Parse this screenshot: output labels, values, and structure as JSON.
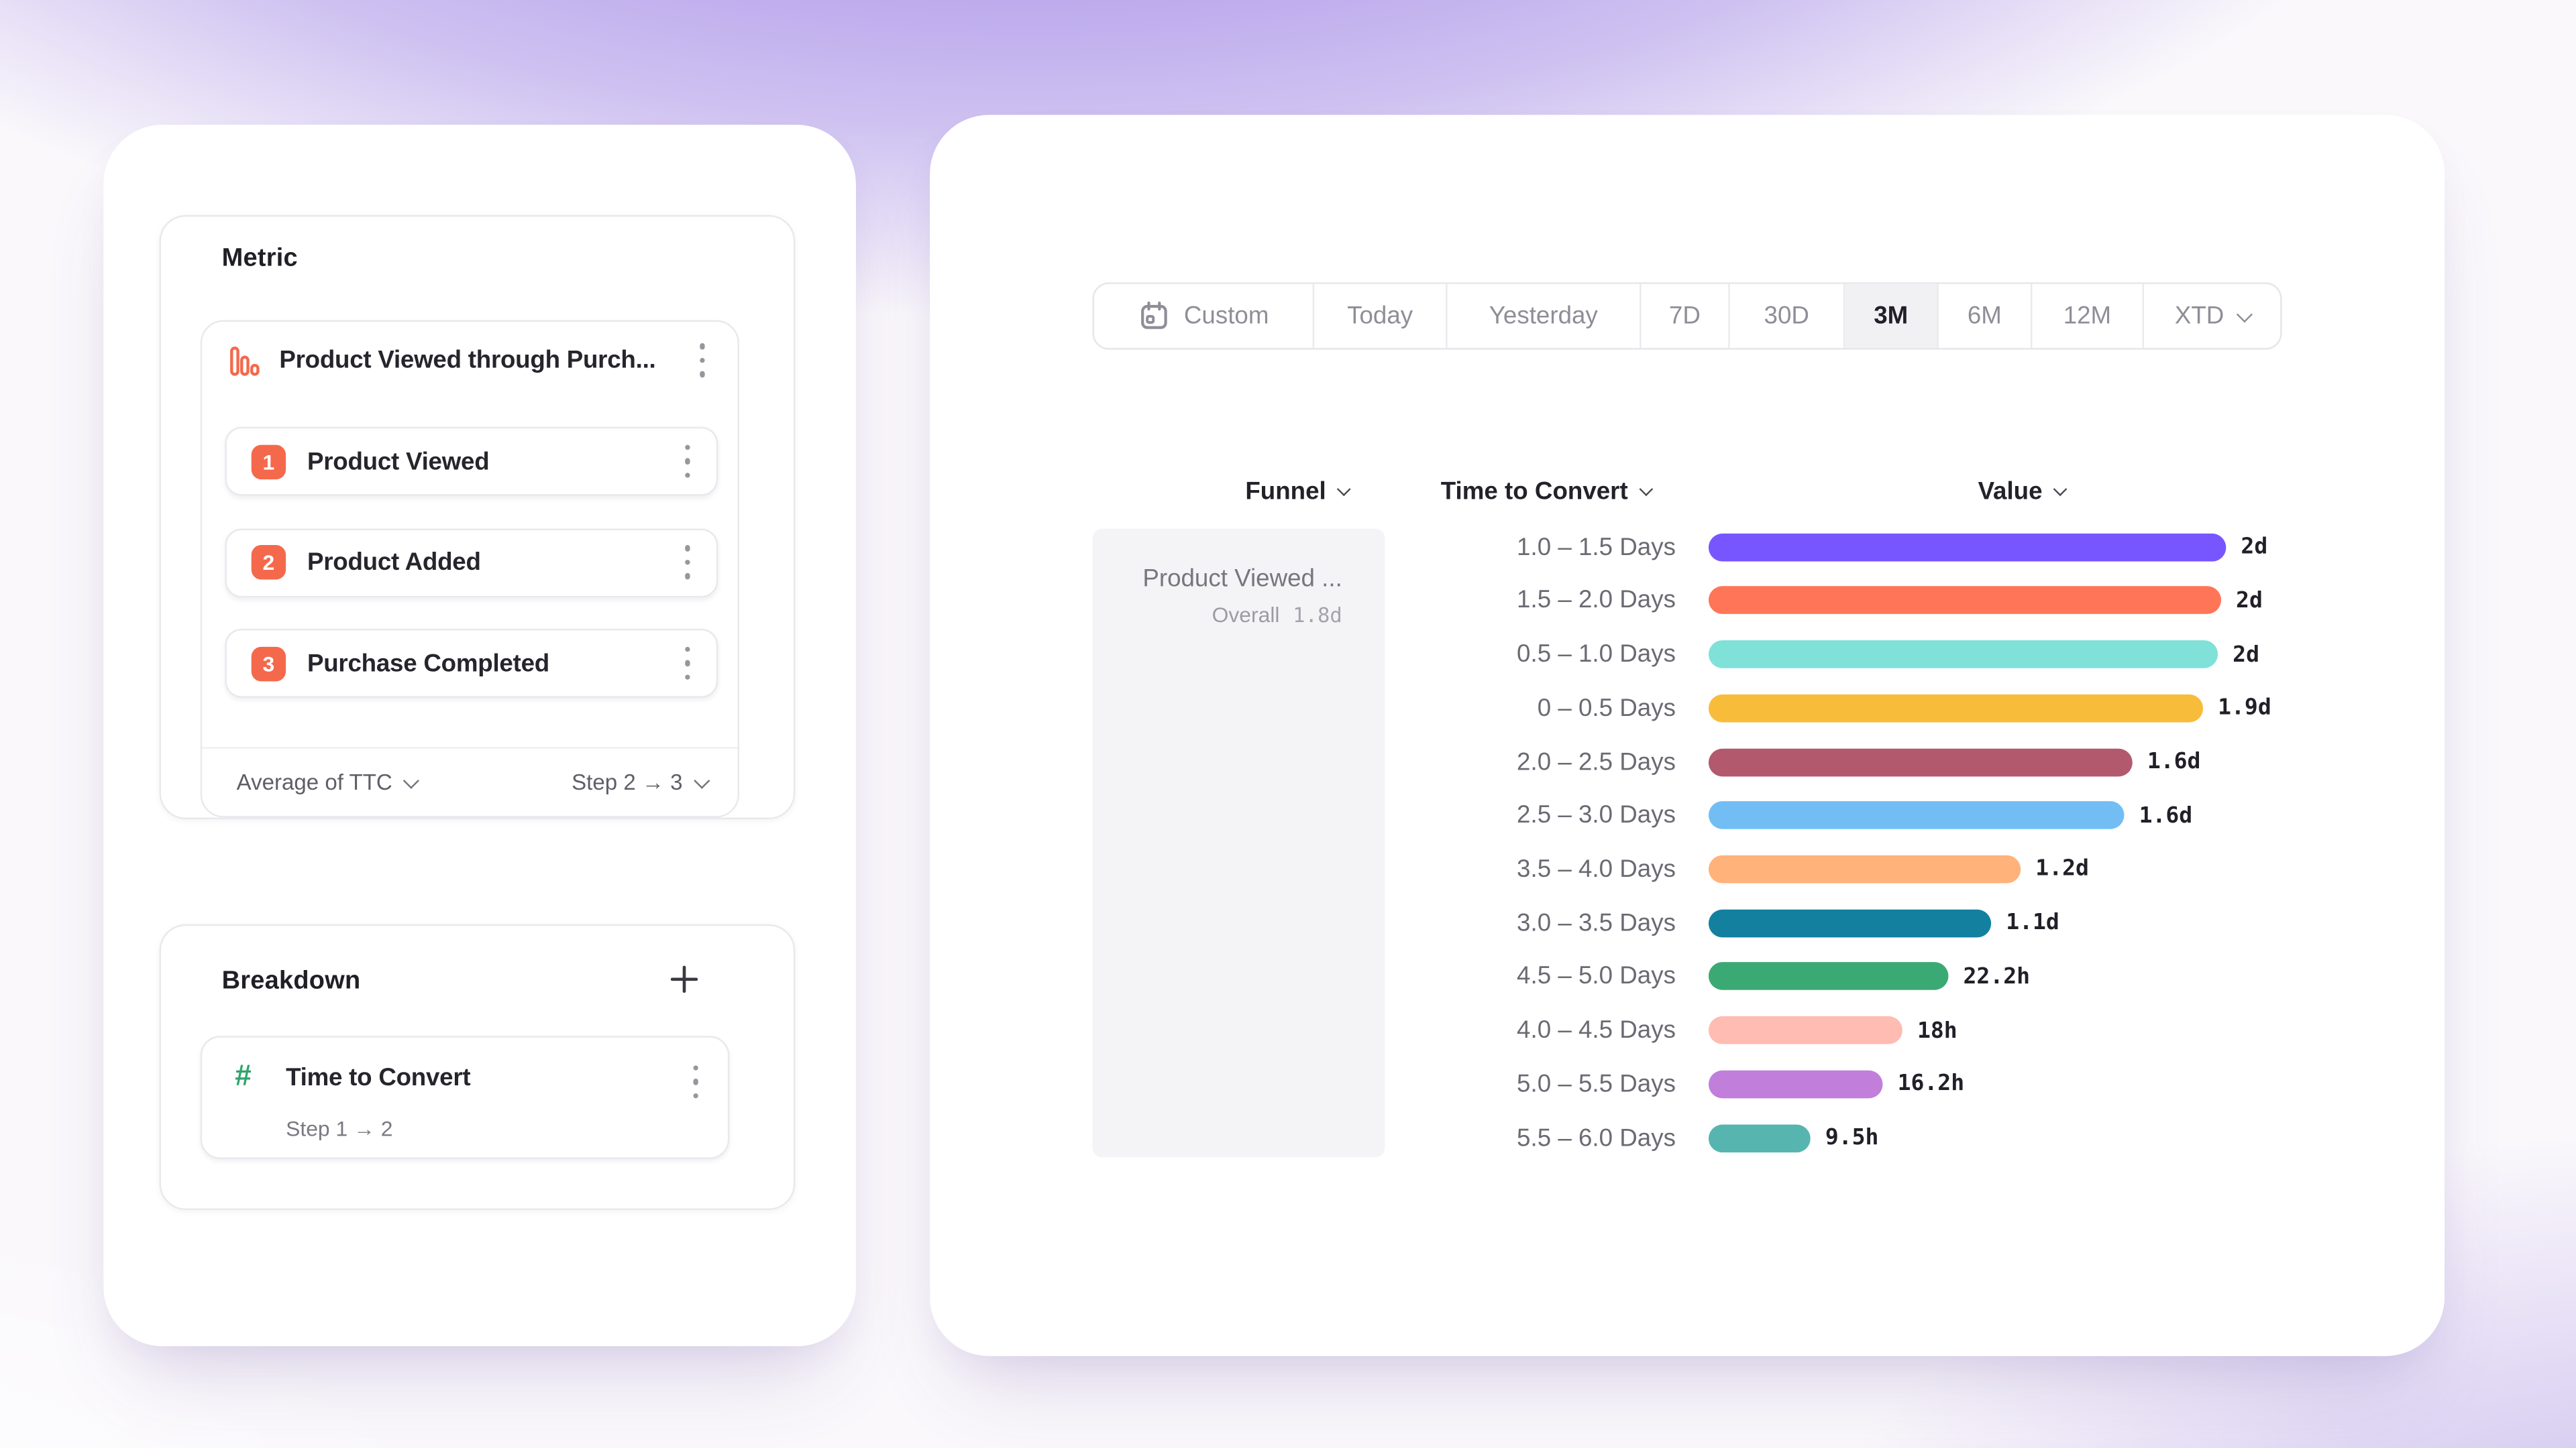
{
  "left_panel": {
    "metric": {
      "title": "Metric",
      "funnel": {
        "name": "Product Viewed through Purch...",
        "steps": [
          {
            "num": "1",
            "label": "Product Viewed"
          },
          {
            "num": "2",
            "label": "Product Added"
          },
          {
            "num": "3",
            "label": "Purchase Completed"
          }
        ],
        "aggregation_label": "Average of TTC",
        "step_range_label": "Step 2 → 3"
      }
    },
    "breakdown": {
      "title": "Breakdown",
      "item": {
        "label": "Time to Convert",
        "sublabel": "Step 1 → 2"
      }
    }
  },
  "right_panel": {
    "date_picker": {
      "segments": [
        {
          "label": "Custom",
          "icon": "calendar-icon",
          "selected": false
        },
        {
          "label": "Today",
          "selected": false
        },
        {
          "label": "Yesterday",
          "selected": false
        },
        {
          "label": "7D",
          "selected": false
        },
        {
          "label": "30D",
          "selected": false
        },
        {
          "label": "3M",
          "selected": true
        },
        {
          "label": "6M",
          "selected": false
        },
        {
          "label": "12M",
          "selected": false
        },
        {
          "label": "XTD",
          "chevron": true,
          "selected": false
        }
      ],
      "selected": "3M"
    },
    "table": {
      "columns": [
        "Funnel",
        "Time to Convert",
        "Value"
      ],
      "funnel_cell": {
        "name": "Product Viewed ...",
        "overall_label": "Overall",
        "overall_value": "1.8d"
      }
    }
  },
  "chart_data": {
    "type": "bar",
    "orientation": "horizontal",
    "title": "",
    "xlabel": "Value",
    "ylabel": "Time to Convert",
    "legend": false,
    "grid": false,
    "categories": [
      "1.0 – 1.5 Days",
      "1.5 – 2.0 Days",
      "0.5 – 1.0 Days",
      "0 – 0.5 Days",
      "2.0 – 2.5 Days",
      "2.5 – 3.0 Days",
      "3.5 – 4.0 Days",
      "3.0 – 3.5 Days",
      "4.5 – 5.0 Days",
      "4.0 – 4.5 Days",
      "5.0 – 5.5 Days",
      "5.5 – 6.0 Days"
    ],
    "values_display": [
      "2d",
      "2d",
      "2d",
      "1.9d",
      "1.6d",
      "1.6d",
      "1.2d",
      "1.1d",
      "22.2h",
      "18h",
      "16.2h",
      "9.5h"
    ],
    "values_hours": [
      48,
      47.5,
      47.2,
      45.8,
      39.3,
      38.5,
      28.9,
      26.2,
      22.2,
      18,
      16.2,
      9.5
    ],
    "fractions": [
      1.0,
      0.99,
      0.984,
      0.955,
      0.819,
      0.803,
      0.602,
      0.546,
      0.4625,
      0.375,
      0.3375,
      0.198
    ],
    "colors": [
      "#7856FF",
      "#FF7557",
      "#80E1D9",
      "#F8BC3B",
      "#B2596E",
      "#72BEF4",
      "#FFB27A",
      "#1380A0",
      "#3BA974",
      "#FFBCB2",
      "#C17EDB",
      "#56B6AF"
    ],
    "overall": {
      "label": "Overall",
      "value": "1.8d"
    }
  }
}
